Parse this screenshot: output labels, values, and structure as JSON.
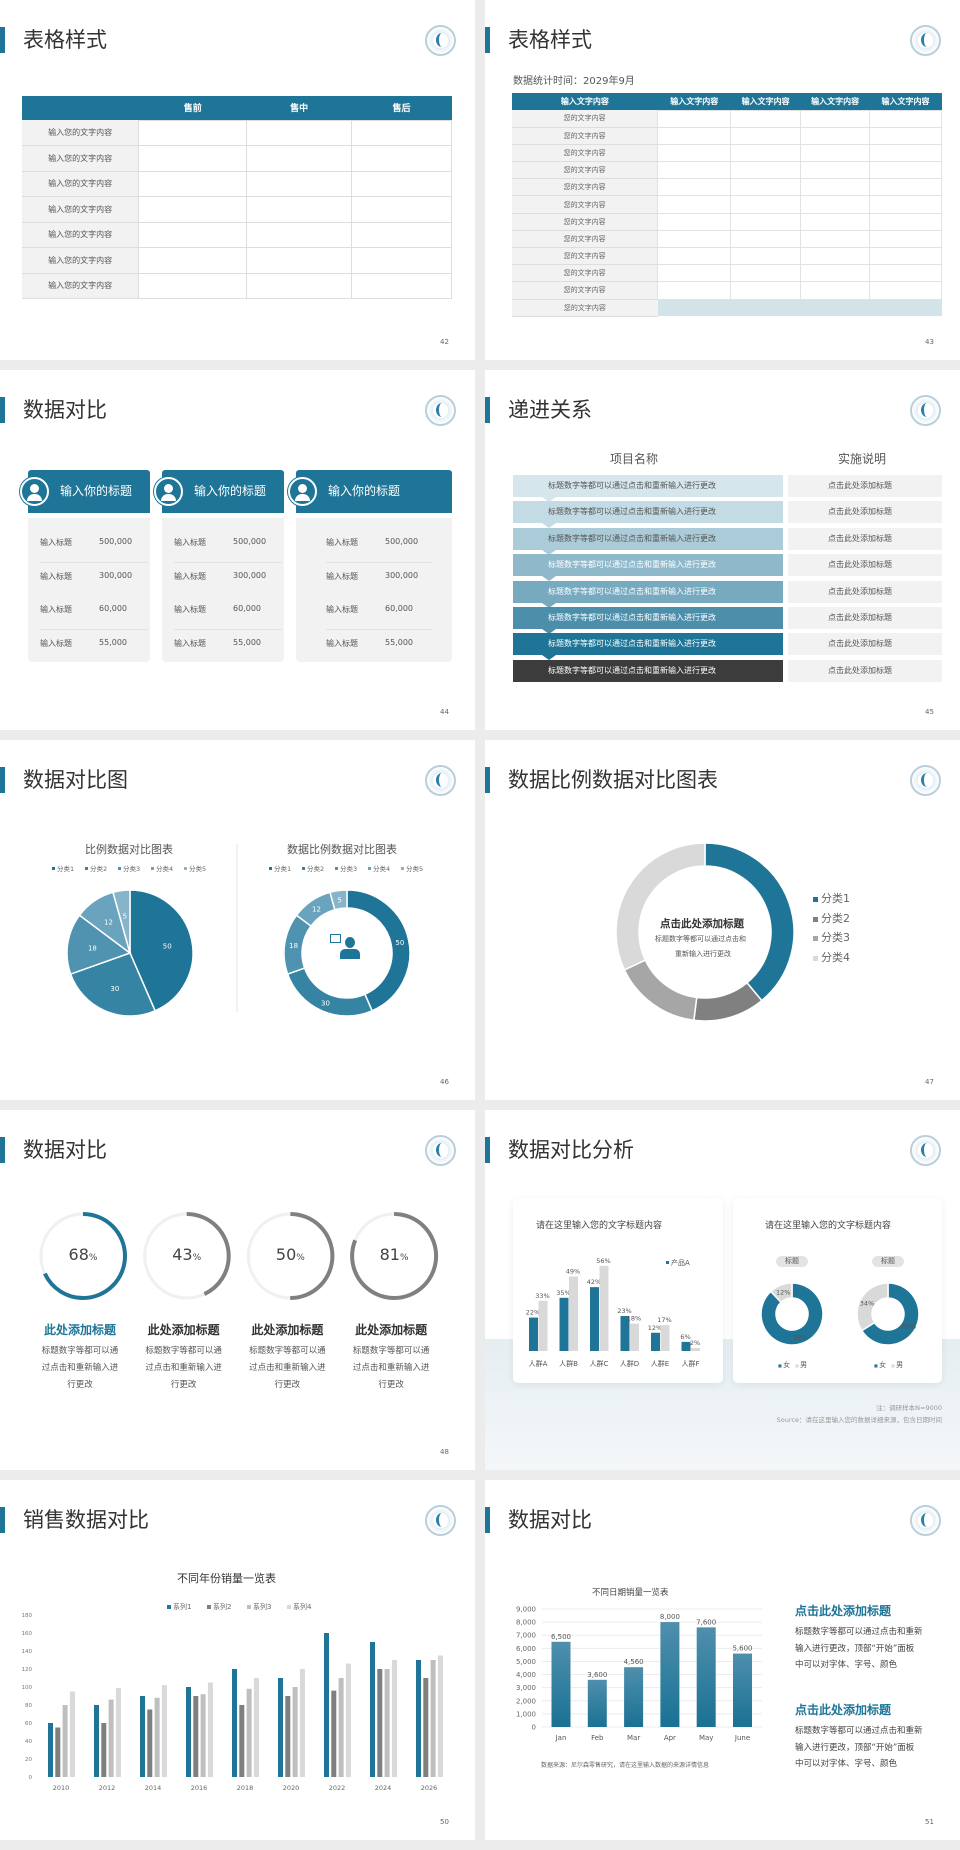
{
  "accent": "#1f7597",
  "slides": [
    {
      "page": "42",
      "title": "表格样式",
      "table": {
        "headers": [
          "",
          "售前",
          "售中",
          "售后"
        ],
        "rows": [
          "输入您的文字内容",
          "输入您的文字内容",
          "输入您的文字内容",
          "输入您的文字内容",
          "输入您的文字内容",
          "输入您的文字内容",
          "输入您的文字内容"
        ]
      }
    },
    {
      "page": "43",
      "title": "表格样式",
      "subtitle": "数据统计时间：2029年9月",
      "table": {
        "headers": [
          "输入文字内容",
          "输入文字内容",
          "输入文字内容",
          "输入文字内容",
          "输入文字内容"
        ],
        "rows": [
          "您的文字内容",
          "您的文字内容",
          "您的文字内容",
          "您的文字内容",
          "您的文字内容",
          "您的文字内容",
          "您的文字内容",
          "您的文字内容",
          "您的文字内容",
          "您的文字内容",
          "您的文字内容",
          "您的文字内容"
        ]
      }
    },
    {
      "page": "44",
      "title": "数据对比",
      "cards": [
        {
          "icon": "phone-user-icon",
          "heading": "输入你的标题",
          "rows": [
            [
              "输入标题",
              "500,000"
            ],
            [
              "输入标题",
              "300,000"
            ],
            [
              "输入标题",
              "60,000"
            ],
            [
              "输入标题",
              "55,000"
            ]
          ]
        },
        {
          "icon": "user-add-icon",
          "heading": "输入你的标题",
          "rows": [
            [
              "输入标题",
              "500,000"
            ],
            [
              "输入标题",
              "300,000"
            ],
            [
              "输入标题",
              "60,000"
            ],
            [
              "输入标题",
              "55,000"
            ]
          ]
        },
        {
          "icon": "users-icon",
          "heading": "输入你的标题",
          "rows": [
            [
              "输入标题",
              "500,000"
            ],
            [
              "输入标题",
              "300,000"
            ],
            [
              "输入标题",
              "60,000"
            ],
            [
              "输入标题",
              "55,000"
            ]
          ]
        }
      ]
    },
    {
      "page": "45",
      "title": "递进关系",
      "col_left": "项目名称",
      "col_right": "实施说明",
      "steps": [
        {
          "text": "标题数字等都可以通过点击和重新输入进行更改",
          "note": "点击此处添加标题",
          "color": "#d5e6ec"
        },
        {
          "text": "标题数字等都可以通过点击和重新输入进行更改",
          "note": "点击此处添加标题",
          "color": "#c3dbe4"
        },
        {
          "text": "标题数字等都可以通过点击和重新输入进行更改",
          "note": "点击此处添加标题",
          "color": "#abcbd8"
        },
        {
          "text": "标题数字等都可以通过点击和重新输入进行更改",
          "note": "点击此处添加标题",
          "color": "#8fb9cb"
        },
        {
          "text": "标题数字等都可以通过点击和重新输入进行更改",
          "note": "点击此处添加标题",
          "color": "#77a9bf"
        },
        {
          "text": "标题数字等都可以通过点击和重新输入进行更改",
          "note": "点击此处添加标题",
          "color": "#4d8fab"
        },
        {
          "text": "标题数字等都可以通过点击和重新输入进行更改",
          "note": "点击此处添加标题",
          "color": "#1f7597"
        },
        {
          "text": "标题数字等都可以通过点击和重新输入进行更改",
          "note": "点击此处添加标题",
          "color": "#3c3c3c"
        }
      ]
    },
    {
      "page": "46",
      "title": "数据对比图"
    },
    {
      "page": "47",
      "title": "数据比例数据对比图表",
      "center_title": "点击此处添加标题",
      "center_lines": [
        "标题数字等都可以通过点击和",
        "重新输入进行更改"
      ]
    },
    {
      "page": "48",
      "title": "数据对比",
      "gauges": [
        {
          "value": 68,
          "label": "68",
          "unit": "%",
          "heading": "此处添加标题",
          "lines": [
            "标题数字等都可以通",
            "过点击和重新输入进",
            "行更改"
          ],
          "color": "#1f7597"
        },
        {
          "value": 43,
          "label": "43",
          "unit": "%",
          "heading": "此处添加标题",
          "lines": [
            "标题数字等都可以通",
            "过点击和重新输入进",
            "行更改"
          ],
          "color": "#808080"
        },
        {
          "value": 50,
          "label": "50",
          "unit": "%",
          "heading": "此处添加标题",
          "lines": [
            "标题数字等都可以通",
            "过点击和重新输入进",
            "行更改"
          ],
          "color": "#808080"
        },
        {
          "value": 81,
          "label": "81",
          "unit": "%",
          "heading": "此处添加标题",
          "lines": [
            "标题数字等都可以通",
            "过点击和重新输入进",
            "行更改"
          ],
          "color": "#808080"
        }
      ]
    },
    {
      "page": "49",
      "title": "数据对比分析",
      "note": "注：调研样本N=9000",
      "source": "Source：请在这里输入您的数据详细来源，包含日期时间"
    },
    {
      "page": "50",
      "title": "销售数据对比"
    },
    {
      "page": "51",
      "title": "数据对比",
      "texts": [
        {
          "heading": "点击此处添加标题",
          "lines": [
            "标题数字等都可以通过点击和重新",
            "输入进行更改，顶部“开始”面板",
            "中可以对字体、字号、颜色"
          ]
        },
        {
          "heading": "点击此处添加标题",
          "lines": [
            "标题数字等都可以通过点击和重新",
            "输入进行更改，顶部“开始”面板",
            "中可以对字体、字号、颜色"
          ]
        }
      ]
    }
  ],
  "chart_data": [
    {
      "slide": "46",
      "type": "pie",
      "title": "比例数据对比图表",
      "legend": [
        "分类1",
        "分类2",
        "分类3",
        "分类4",
        "分类5"
      ],
      "legend_position": "top",
      "values": [
        50,
        30,
        18,
        12,
        5
      ],
      "colors": [
        "#1f7597",
        "#3584a3",
        "#4f93b0",
        "#6aa3bd",
        "#86b4c9"
      ]
    },
    {
      "slide": "46",
      "type": "pie",
      "variant": "donut",
      "title": "数据比例数据对比图表",
      "legend": [
        "分类1",
        "分类2",
        "分类3",
        "分类4",
        "分类5"
      ],
      "legend_position": "top",
      "values": [
        50,
        30,
        18,
        12,
        5
      ],
      "colors": [
        "#1f7597",
        "#3584a3",
        "#4f93b0",
        "#6aa3bd",
        "#86b4c9"
      ],
      "center_icon": "presenter-icon"
    },
    {
      "slide": "47",
      "type": "pie",
      "variant": "donut",
      "legend": [
        "分类1",
        "分类2",
        "分类3",
        "分类4"
      ],
      "legend_position": "right",
      "values": [
        39,
        13,
        16,
        32
      ],
      "colors": [
        "#1f7597",
        "#808080",
        "#a6a6a6",
        "#d9d9d9"
      ]
    },
    {
      "slide": "49",
      "type": "bar",
      "title": "请在这里输入您的文字标题内容",
      "categories": [
        "人群A",
        "人群B",
        "人群C",
        "人群D",
        "人群E",
        "人群F"
      ],
      "series": [
        {
          "name": "产品A",
          "values": [
            22,
            35,
            42,
            23,
            12,
            6
          ],
          "color": "#1f7597"
        },
        {
          "values": [
            33,
            49,
            56,
            18,
            17,
            2
          ],
          "color": "#d9d9d9"
        }
      ],
      "unit": "%",
      "legend_position": "top-right"
    },
    {
      "slide": "49",
      "type": "pie",
      "variant": "donut",
      "title": "请在这里输入您的文字标题内容",
      "charts": [
        {
          "label": "标题",
          "values": [
            88,
            12
          ],
          "labels": [
            "88%",
            "12%"
          ]
        },
        {
          "label": "标题",
          "values": [
            66,
            34
          ],
          "labels": [
            "66%",
            "34%"
          ]
        }
      ],
      "legend": [
        "女",
        "男"
      ],
      "colors": [
        "#1f7597",
        "#d9d9d9"
      ]
    },
    {
      "slide": "50",
      "type": "bar",
      "title": "不同年份销量一览表",
      "categories": [
        "2010",
        "2012",
        "2014",
        "2016",
        "2018",
        "2020",
        "2022",
        "2024",
        "2026"
      ],
      "ylim": [
        0,
        180
      ],
      "yticks": [
        0,
        20,
        40,
        60,
        80,
        100,
        120,
        140,
        160,
        180
      ],
      "legend_position": "top",
      "series": [
        {
          "name": "系列1",
          "values": [
            60,
            80,
            90,
            100,
            120,
            110,
            160,
            150,
            130
          ],
          "color": "#1f7597"
        },
        {
          "name": "系列2",
          "values": [
            55,
            60,
            75,
            90,
            80,
            90,
            96,
            120,
            110
          ],
          "color": "#7f7f7f"
        },
        {
          "name": "系列3",
          "values": [
            80,
            86,
            88,
            92,
            98,
            100,
            110,
            120,
            130
          ],
          "color": "#bfbfbf"
        },
        {
          "name": "系列4",
          "values": [
            95,
            99,
            102,
            105,
            110,
            120,
            126,
            130,
            135
          ],
          "color": "#d9d9d9"
        }
      ]
    },
    {
      "slide": "51",
      "type": "bar",
      "title": "不同日期销量一览表",
      "categories": [
        "Jan",
        "Feb",
        "Mar",
        "Apr",
        "May",
        "June"
      ],
      "values": [
        6500,
        3600,
        4560,
        8000,
        7600,
        5600
      ],
      "value_labels": [
        "6,500",
        "3,600",
        "4,560",
        "8,000",
        "7,600",
        "5,600"
      ],
      "ylim": [
        0,
        9000
      ],
      "yticks": [
        "0",
        "1,000",
        "2,000",
        "3,000",
        "4,000",
        "5,000",
        "6,000",
        "7,000",
        "8,000",
        "9,000"
      ],
      "grid": true,
      "color": "#1f7597",
      "source": "数据来源：尼尔森零售研究，请在这里输入数据的来源详情信息"
    }
  ]
}
